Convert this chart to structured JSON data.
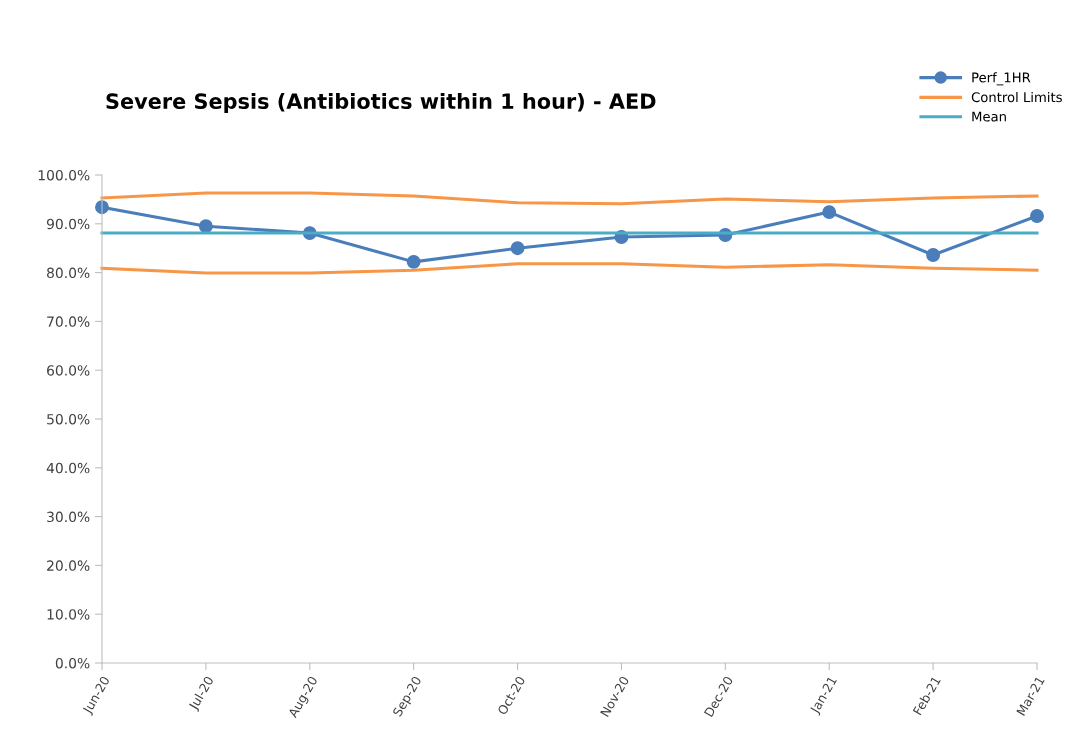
{
  "chart_data": {
    "type": "line",
    "title": "Severe Sepsis (Antibiotics within 1 hour) - AED",
    "categories": [
      "Jun-20",
      "Jul-20",
      "Aug-20",
      "Sep-20",
      "Oct-20",
      "Nov-20",
      "Dec-20",
      "Jan-21",
      "Feb-21",
      "Mar-21"
    ],
    "series": [
      {
        "name": "Perf_1HR",
        "color": "#4a7ebb",
        "marker": "circle",
        "values": [
          93.4,
          89.5,
          88.1,
          82.2,
          85.0,
          87.3,
          87.7,
          92.4,
          83.6,
          91.6
        ]
      },
      {
        "name": "Control Limits",
        "color": "#f79646",
        "marker": "none",
        "values": [
          95.3,
          96.3,
          96.3,
          95.7,
          94.3,
          94.1,
          95.1,
          94.5,
          95.3,
          95.7
        ]
      },
      {
        "color": "#f79646",
        "marker": "none",
        "values": [
          80.9,
          79.9,
          79.9,
          80.5,
          81.8,
          81.8,
          81.1,
          81.6,
          80.9,
          80.5
        ]
      },
      {
        "name": "Mean",
        "color": "#4bacc6",
        "marker": "none",
        "values": [
          88.1,
          88.1,
          88.1,
          88.1,
          88.1,
          88.1,
          88.1,
          88.1,
          88.1,
          88.1
        ]
      }
    ],
    "ylim": [
      0,
      100
    ],
    "yticks": [
      {
        "value": 0,
        "label": "0.0%"
      },
      {
        "value": 10,
        "label": "10.0%"
      },
      {
        "value": 20,
        "label": "20.0%"
      },
      {
        "value": 30,
        "label": "30.0%"
      },
      {
        "value": 40,
        "label": "40.0%"
      },
      {
        "value": 50,
        "label": "50.0%"
      },
      {
        "value": 60,
        "label": "60.0%"
      },
      {
        "value": 70,
        "label": "70.0%"
      },
      {
        "value": 80,
        "label": "80.0%"
      },
      {
        "value": 90,
        "label": "90.0%"
      },
      {
        "value": 100,
        "label": "100.0%"
      }
    ],
    "grid": false,
    "legend": "top right",
    "line_style": "solid"
  }
}
